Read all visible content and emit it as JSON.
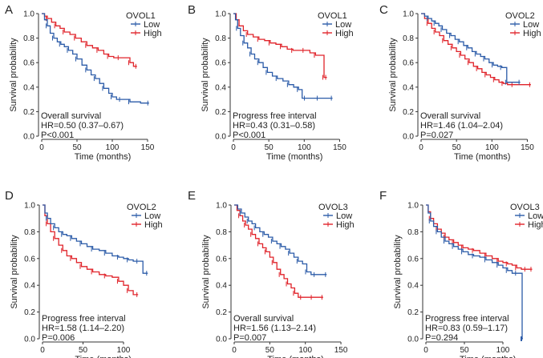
{
  "colors": {
    "low": "#2b5ba8",
    "high": "#e0232a",
    "axis": "#333333"
  },
  "chart_data": [
    {
      "type": "line",
      "panel_letter": "A",
      "gene": "OVOL1",
      "endpoint": "Overall survival",
      "hr": "HR=0.50 (0.37–0.67)",
      "p": "P<0.001",
      "xlabel": "Time (months)",
      "ylabel": "Survival probability",
      "xlim": [
        0,
        150
      ],
      "ylim": [
        0,
        1
      ],
      "xticks": [
        0,
        50,
        100,
        150
      ],
      "yticks": [
        0.0,
        0.2,
        0.4,
        0.6,
        0.8,
        1.0
      ],
      "series": [
        {
          "name": "Low",
          "x": [
            0,
            4,
            8,
            12,
            17,
            22,
            27,
            32,
            38,
            44,
            50,
            57,
            64,
            70,
            76,
            82,
            88,
            95,
            100,
            106,
            112,
            118,
            125,
            140,
            152
          ],
          "y": [
            1.0,
            0.95,
            0.9,
            0.84,
            0.8,
            0.77,
            0.75,
            0.73,
            0.7,
            0.67,
            0.63,
            0.58,
            0.54,
            0.5,
            0.47,
            0.43,
            0.39,
            0.35,
            0.32,
            0.3,
            0.3,
            0.3,
            0.28,
            0.27,
            0.27
          ]
        },
        {
          "name": "High",
          "x": [
            0,
            4,
            8,
            14,
            20,
            26,
            32,
            40,
            48,
            56,
            64,
            72,
            80,
            88,
            95,
            102,
            110,
            118,
            125,
            130,
            135
          ],
          "y": [
            1.0,
            0.98,
            0.96,
            0.93,
            0.9,
            0.88,
            0.85,
            0.83,
            0.8,
            0.77,
            0.74,
            0.72,
            0.7,
            0.67,
            0.65,
            0.64,
            0.64,
            0.64,
            0.6,
            0.57,
            0.57
          ]
        }
      ]
    },
    {
      "type": "line",
      "panel_letter": "B",
      "gene": "OVOL1",
      "endpoint": "Progress free interval",
      "hr": "HR=0.43 (0.31–0.58)",
      "p": "P<0.001",
      "xlabel": "Time (months)",
      "ylabel": "Survival probability",
      "xlim": [
        0,
        150
      ],
      "ylim": [
        0,
        1
      ],
      "xticks": [
        0,
        50,
        100,
        150
      ],
      "yticks": [
        0.0,
        0.2,
        0.4,
        0.6,
        0.8,
        1.0
      ],
      "series": [
        {
          "name": "Low",
          "x": [
            0,
            3,
            6,
            10,
            15,
            20,
            25,
            30,
            36,
            42,
            48,
            55,
            62,
            70,
            78,
            85,
            92,
            97,
            102,
            110,
            120,
            130,
            140
          ],
          "y": [
            1.0,
            0.95,
            0.88,
            0.82,
            0.76,
            0.72,
            0.67,
            0.63,
            0.6,
            0.56,
            0.52,
            0.49,
            0.47,
            0.45,
            0.42,
            0.4,
            0.38,
            0.31,
            0.31,
            0.31,
            0.31,
            0.31,
            0.31
          ]
        },
        {
          "name": "High",
          "x": [
            0,
            4,
            8,
            14,
            20,
            28,
            36,
            44,
            52,
            60,
            68,
            76,
            84,
            92,
            100,
            108,
            116,
            124,
            128,
            132
          ],
          "y": [
            1.0,
            0.95,
            0.9,
            0.86,
            0.83,
            0.81,
            0.79,
            0.78,
            0.76,
            0.75,
            0.73,
            0.71,
            0.7,
            0.7,
            0.7,
            0.68,
            0.66,
            0.66,
            0.48,
            0.48
          ]
        }
      ]
    },
    {
      "type": "line",
      "panel_letter": "C",
      "gene": "OVOL2",
      "endpoint": "Overall survival",
      "hr": "HR=1.46 (1.04–2.04)",
      "p": "P=0.027",
      "xlabel": "Time (months)",
      "ylabel": "Survival probability",
      "xlim": [
        0,
        150
      ],
      "ylim": [
        0,
        1
      ],
      "xticks": [
        0,
        50,
        100,
        150
      ],
      "yticks": [
        0.0,
        0.2,
        0.4,
        0.6,
        0.8,
        1.0
      ],
      "series": [
        {
          "name": "Low",
          "x": [
            0,
            5,
            10,
            15,
            20,
            25,
            30,
            36,
            42,
            48,
            54,
            60,
            66,
            72,
            78,
            84,
            90,
            96,
            102,
            108,
            114,
            120,
            121,
            130,
            140
          ],
          "y": [
            1.0,
            0.98,
            0.96,
            0.94,
            0.92,
            0.9,
            0.87,
            0.84,
            0.82,
            0.79,
            0.77,
            0.74,
            0.72,
            0.69,
            0.67,
            0.65,
            0.63,
            0.6,
            0.58,
            0.57,
            0.56,
            0.56,
            0.44,
            0.44,
            0.44
          ]
        },
        {
          "name": "High",
          "x": [
            0,
            5,
            10,
            15,
            20,
            26,
            32,
            38,
            44,
            50,
            56,
            62,
            68,
            74,
            80,
            86,
            92,
            98,
            104,
            110,
            116,
            122,
            130,
            140,
            155
          ],
          "y": [
            1.0,
            0.96,
            0.92,
            0.88,
            0.85,
            0.82,
            0.78,
            0.75,
            0.72,
            0.69,
            0.66,
            0.63,
            0.6,
            0.57,
            0.55,
            0.52,
            0.5,
            0.48,
            0.46,
            0.44,
            0.43,
            0.42,
            0.42,
            0.42,
            0.42
          ]
        }
      ]
    },
    {
      "type": "line",
      "panel_letter": "D",
      "gene": "OVOL2",
      "endpoint": "Progress free interval",
      "hr": "HR=1.58 (1.14–2.20)",
      "p": "P=0.006",
      "xlabel": "Time (months)",
      "ylabel": "Survival probability",
      "xlim": [
        0,
        130
      ],
      "ylim": [
        0,
        1
      ],
      "xticks": [
        0,
        50,
        100
      ],
      "yticks": [
        0.0,
        0.2,
        0.4,
        0.6,
        0.8,
        1.0
      ],
      "series": [
        {
          "name": "Low",
          "x": [
            0,
            3,
            6,
            10,
            15,
            20,
            25,
            30,
            36,
            42,
            48,
            55,
            62,
            70,
            78,
            86,
            94,
            100,
            106,
            112,
            118,
            124,
            130
          ],
          "y": [
            1.0,
            0.94,
            0.9,
            0.86,
            0.83,
            0.8,
            0.78,
            0.77,
            0.75,
            0.73,
            0.71,
            0.69,
            0.67,
            0.66,
            0.64,
            0.62,
            0.61,
            0.6,
            0.59,
            0.58,
            0.58,
            0.49,
            0.49
          ]
        },
        {
          "name": "High",
          "x": [
            0,
            3,
            6,
            10,
            15,
            20,
            25,
            30,
            36,
            42,
            48,
            55,
            62,
            70,
            78,
            86,
            94,
            100,
            106,
            112,
            118
          ],
          "y": [
            1.0,
            0.92,
            0.86,
            0.8,
            0.75,
            0.7,
            0.66,
            0.62,
            0.6,
            0.57,
            0.54,
            0.52,
            0.5,
            0.48,
            0.47,
            0.46,
            0.43,
            0.4,
            0.36,
            0.33,
            0.33
          ]
        }
      ]
    },
    {
      "type": "line",
      "panel_letter": "E",
      "gene": "OVOL3",
      "endpoint": "Overall survival",
      "hr": "HR=1.56 (1.13–2.14)",
      "p": "P=0.007",
      "xlabel": "Time (months)",
      "ylabel": "Survival probability",
      "xlim": [
        0,
        150
      ],
      "ylim": [
        0,
        1
      ],
      "xticks": [
        0,
        50,
        100,
        150
      ],
      "yticks": [
        0.0,
        0.2,
        0.4,
        0.6,
        0.8,
        1.0
      ],
      "series": [
        {
          "name": "Low",
          "x": [
            0,
            5,
            10,
            15,
            20,
            25,
            30,
            36,
            42,
            48,
            54,
            60,
            66,
            72,
            78,
            84,
            90,
            96,
            102,
            108,
            114,
            120,
            130
          ],
          "y": [
            1.0,
            0.97,
            0.94,
            0.91,
            0.88,
            0.86,
            0.83,
            0.8,
            0.78,
            0.76,
            0.73,
            0.71,
            0.69,
            0.67,
            0.64,
            0.61,
            0.58,
            0.56,
            0.5,
            0.48,
            0.48,
            0.48,
            0.48
          ]
        },
        {
          "name": "High",
          "x": [
            0,
            4,
            8,
            12,
            16,
            20,
            25,
            30,
            35,
            40,
            45,
            50,
            55,
            60,
            65,
            70,
            75,
            80,
            85,
            90,
            95,
            100,
            110,
            125
          ],
          "y": [
            1.0,
            0.96,
            0.92,
            0.88,
            0.85,
            0.82,
            0.78,
            0.75,
            0.71,
            0.68,
            0.65,
            0.61,
            0.57,
            0.52,
            0.48,
            0.45,
            0.41,
            0.38,
            0.34,
            0.31,
            0.31,
            0.31,
            0.31,
            0.31
          ]
        }
      ]
    },
    {
      "type": "line",
      "panel_letter": "F",
      "gene": "OVOL3",
      "endpoint": "Progress free interval",
      "hr": "HR=0.83 (0.59–1.17)",
      "p": "P=0.294",
      "xlabel": "Time (months)",
      "ylabel": "Survival probability",
      "xlim": [
        0,
        140
      ],
      "ylim": [
        0,
        1
      ],
      "xticks": [
        0,
        50,
        100
      ],
      "yticks": [
        0.0,
        0.2,
        0.4,
        0.6,
        0.8,
        1.0
      ],
      "series": [
        {
          "name": "Low",
          "x": [
            0,
            3,
            6,
            10,
            15,
            20,
            25,
            30,
            36,
            42,
            48,
            55,
            62,
            70,
            78,
            86,
            94,
            100,
            106,
            112,
            118,
            124,
            125,
            126
          ],
          "y": [
            1.0,
            0.94,
            0.88,
            0.84,
            0.8,
            0.76,
            0.73,
            0.71,
            0.69,
            0.67,
            0.65,
            0.63,
            0.62,
            0.61,
            0.59,
            0.57,
            0.55,
            0.53,
            0.51,
            0.49,
            0.49,
            0.49,
            0.0,
            0.0
          ]
        },
        {
          "name": "High",
          "x": [
            0,
            3,
            6,
            10,
            15,
            20,
            25,
            30,
            36,
            42,
            48,
            55,
            62,
            70,
            78,
            86,
            94,
            100,
            106,
            112,
            118,
            124,
            130,
            138
          ],
          "y": [
            1.0,
            0.95,
            0.9,
            0.86,
            0.82,
            0.79,
            0.76,
            0.74,
            0.72,
            0.7,
            0.68,
            0.67,
            0.66,
            0.64,
            0.62,
            0.6,
            0.58,
            0.57,
            0.56,
            0.55,
            0.53,
            0.52,
            0.52,
            0.52
          ]
        }
      ]
    }
  ]
}
